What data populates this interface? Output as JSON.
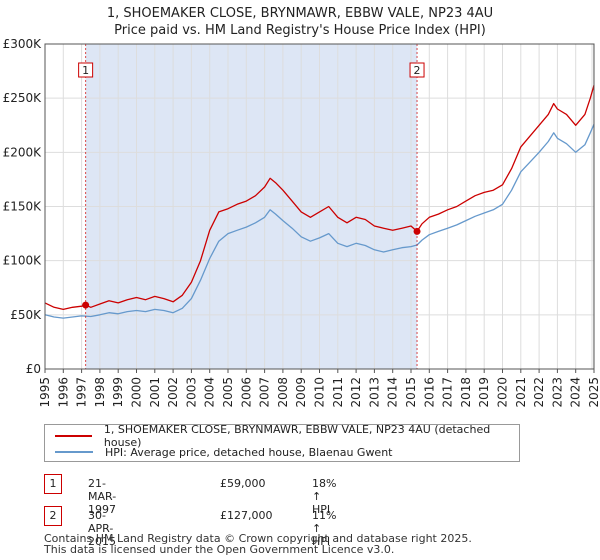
{
  "title_line1": "1, SHOEMAKER CLOSE, BRYNMAWR, EBBW VALE, NP23 4AU",
  "title_line2": "Price paid vs. HM Land Registry's House Price Index (HPI)",
  "colors": {
    "property": "#cc0000",
    "hpi": "#6699cc",
    "shade": "#dde6f5",
    "marker": "#cc0000"
  },
  "legend": {
    "property_label": "1, SHOEMAKER CLOSE, BRYNMAWR, EBBW VALE, NP23 4AU (detached house)",
    "hpi_label": "HPI: Average price, detached house, Blaenau Gwent"
  },
  "transactions": [
    {
      "num": "1",
      "date": "21-MAR-1997",
      "price": "£59,000",
      "hpi": "18% ↑ HPI"
    },
    {
      "num": "2",
      "date": "30-APR-2015",
      "price": "£127,000",
      "hpi": "11% ↑ HPI"
    }
  ],
  "footer_line1": "Contains HM Land Registry data © Crown copyright and database right 2025.",
  "footer_line2": "This data is licensed under the Open Government Licence v3.0.",
  "chart_data": {
    "type": "line",
    "title": "Price paid vs. HM Land Registry's House Price Index (HPI)",
    "xlim": [
      1995,
      2025
    ],
    "ylim": [
      0,
      300000
    ],
    "y_ticks": [
      0,
      50000,
      100000,
      150000,
      200000,
      250000,
      300000
    ],
    "y_tick_labels": [
      "£0",
      "£50K",
      "£100K",
      "£150K",
      "£200K",
      "£250K",
      "£300K"
    ],
    "x_ticks": [
      1995,
      1996,
      1997,
      1998,
      1999,
      2000,
      2001,
      2002,
      2003,
      2004,
      2005,
      2006,
      2007,
      2008,
      2009,
      2010,
      2011,
      2012,
      2013,
      2014,
      2015,
      2016,
      2017,
      2018,
      2019,
      2020,
      2021,
      2022,
      2023,
      2024,
      2025
    ],
    "x_tick_labels": [
      "1995",
      "1996",
      "1997",
      "1998",
      "1999",
      "2000",
      "2001",
      "2002",
      "2003",
      "2004",
      "2005",
      "2006",
      "2007",
      "2008",
      "2009",
      "2010",
      "2011",
      "2012",
      "2013",
      "2014",
      "2015",
      "2016",
      "2017",
      "2018",
      "2019",
      "2020",
      "2021",
      "2022",
      "2023",
      "2024",
      "2025"
    ],
    "grid": true,
    "shaded_period": [
      1997.22,
      2015.33
    ],
    "markers": [
      {
        "label": "1",
        "x": 1997.22,
        "y": 59000
      },
      {
        "label": "2",
        "x": 2015.33,
        "y": 127000
      }
    ],
    "series": [
      {
        "name": "1, SHOEMAKER CLOSE, BRYNMAWR, EBBW VALE, NP23 4AU (detached house)",
        "x": [
          1995.0,
          1995.5,
          1996.0,
          1996.5,
          1997.0,
          1997.22,
          1997.5,
          1998.0,
          1998.5,
          1999.0,
          1999.5,
          2000.0,
          2000.5,
          2001.0,
          2001.5,
          2002.0,
          2002.5,
          2003.0,
          2003.5,
          2004.0,
          2004.5,
          2005.0,
          2005.5,
          2006.0,
          2006.5,
          2007.0,
          2007.3,
          2007.6,
          2008.0,
          2008.5,
          2009.0,
          2009.5,
          2010.0,
          2010.5,
          2011.0,
          2011.5,
          2012.0,
          2012.5,
          2013.0,
          2013.5,
          2014.0,
          2014.5,
          2015.0,
          2015.33,
          2015.6,
          2016.0,
          2016.5,
          2017.0,
          2017.5,
          2018.0,
          2018.5,
          2019.0,
          2019.5,
          2020.0,
          2020.5,
          2021.0,
          2021.5,
          2022.0,
          2022.5,
          2022.8,
          2023.0,
          2023.5,
          2024.0,
          2024.5,
          2024.8,
          2025.0
        ],
        "values": [
          61000,
          57000,
          55000,
          57000,
          58000,
          59000,
          57000,
          60000,
          63000,
          61000,
          64000,
          66000,
          64000,
          67000,
          65000,
          62000,
          68000,
          80000,
          100000,
          128000,
          145000,
          148000,
          152000,
          155000,
          160000,
          168000,
          176000,
          172000,
          165000,
          155000,
          145000,
          140000,
          145000,
          150000,
          140000,
          135000,
          140000,
          138000,
          132000,
          130000,
          128000,
          130000,
          132000,
          127000,
          134000,
          140000,
          143000,
          147000,
          150000,
          155000,
          160000,
          163000,
          165000,
          170000,
          185000,
          205000,
          215000,
          225000,
          235000,
          245000,
          240000,
          235000,
          225000,
          235000,
          250000,
          262000
        ]
      },
      {
        "name": "HPI: Average price, detached house, Blaenau Gwent",
        "x": [
          1995.0,
          1995.5,
          1996.0,
          1996.5,
          1997.0,
          1997.5,
          1998.0,
          1998.5,
          1999.0,
          1999.5,
          2000.0,
          2000.5,
          2001.0,
          2001.5,
          2002.0,
          2002.5,
          2003.0,
          2003.5,
          2004.0,
          2004.5,
          2005.0,
          2005.5,
          2006.0,
          2006.5,
          2007.0,
          2007.3,
          2007.6,
          2008.0,
          2008.5,
          2009.0,
          2009.5,
          2010.0,
          2010.5,
          2011.0,
          2011.5,
          2012.0,
          2012.5,
          2013.0,
          2013.5,
          2014.0,
          2014.5,
          2015.0,
          2015.33,
          2015.6,
          2016.0,
          2016.5,
          2017.0,
          2017.5,
          2018.0,
          2018.5,
          2019.0,
          2019.5,
          2020.0,
          2020.5,
          2021.0,
          2021.5,
          2022.0,
          2022.5,
          2022.8,
          2023.0,
          2023.5,
          2024.0,
          2024.5,
          2024.8,
          2025.0
        ],
        "values": [
          50000,
          48000,
          47000,
          48000,
          49000,
          48500,
          50000,
          52000,
          51000,
          53000,
          54000,
          53000,
          55000,
          54000,
          52000,
          56000,
          65000,
          82000,
          102000,
          118000,
          125000,
          128000,
          131000,
          135000,
          140000,
          147000,
          143000,
          137000,
          130000,
          122000,
          118000,
          121000,
          125000,
          116000,
          113000,
          116000,
          114000,
          110000,
          108000,
          110000,
          112000,
          113000,
          114500,
          119000,
          124000,
          127000,
          130000,
          133000,
          137000,
          141000,
          144000,
          147000,
          152000,
          165000,
          182000,
          191000,
          200000,
          210000,
          218000,
          213000,
          208000,
          200000,
          207000,
          218000,
          226000
        ]
      }
    ]
  }
}
